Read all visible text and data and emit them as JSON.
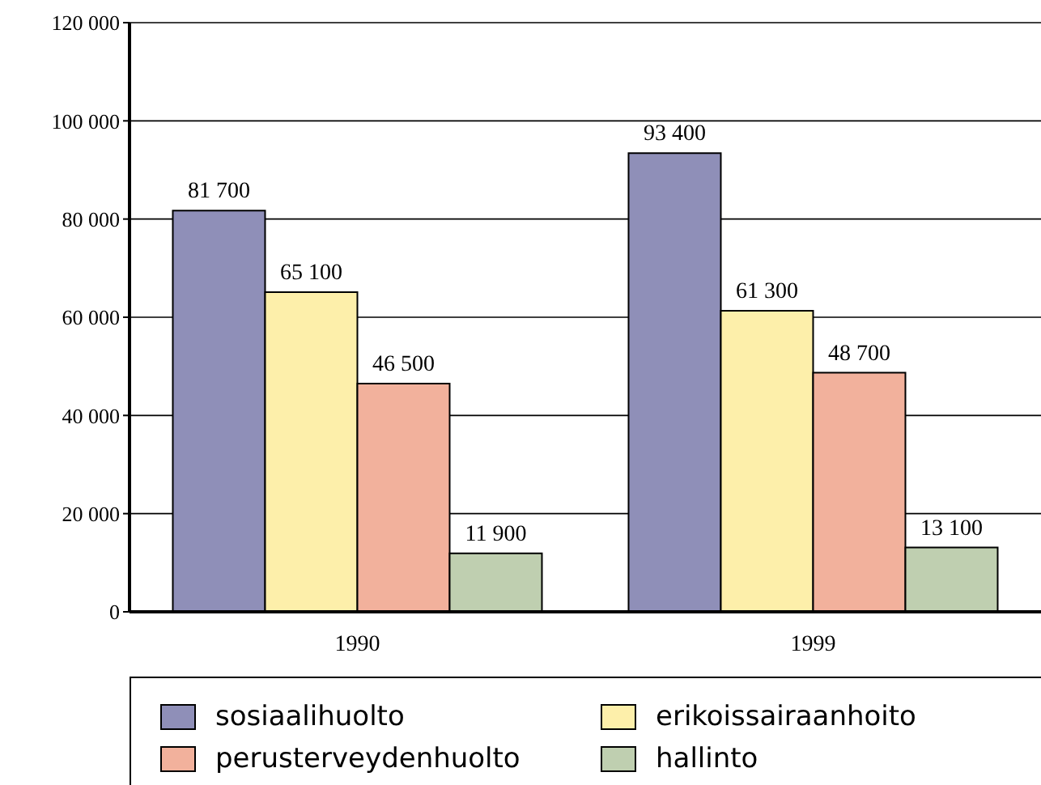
{
  "chart_data": {
    "type": "bar",
    "categories": [
      "1990",
      "1999"
    ],
    "series": [
      {
        "name": "sosiaalihuolto",
        "color": "#8f8fb8",
        "values": [
          81700,
          93400
        ],
        "value_labels": [
          "81 700",
          "93 400"
        ]
      },
      {
        "name": "erikoissairaanhoito",
        "color": "#fdefaa",
        "values": [
          65100,
          61300
        ],
        "value_labels": [
          "65 100",
          "61 300"
        ]
      },
      {
        "name": "perusterveydenhuolto",
        "color": "#f2b19c",
        "values": [
          46500,
          48700
        ],
        "value_labels": [
          "46 500",
          "48 700"
        ]
      },
      {
        "name": "hallinto",
        "color": "#bfcfb0",
        "values": [
          11900,
          13100
        ],
        "value_labels": [
          "11 900",
          "13 100"
        ]
      }
    ],
    "ylim": [
      0,
      120000
    ],
    "yticks": [
      0,
      {
        "value": 20000,
        "label": "20 000"
      },
      {
        "value": 40000,
        "label": "40 000"
      },
      {
        "value": 60000,
        "label": "60 000"
      },
      {
        "value": 80000,
        "label": "80 000"
      },
      {
        "value": 100000,
        "label": "100 000"
      },
      {
        "value": 120000,
        "label": "120 000"
      }
    ],
    "grid": "y",
    "legend": "bottom"
  }
}
